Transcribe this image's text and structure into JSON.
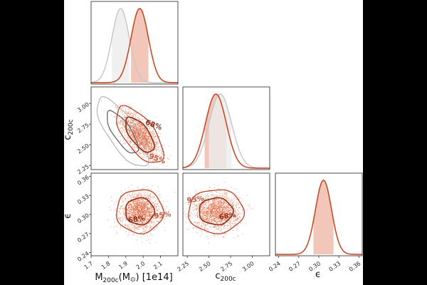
{
  "chart_data": {
    "type": "corner",
    "colors": {
      "posterior": "#c8401c",
      "posterior_fill": "#f2c6b8",
      "reference": "#c8c8c8",
      "scatter": "#e0643c",
      "contour_dark": "#8a2f17"
    },
    "parameters": [
      {
        "name": "M200c",
        "label_main": "M",
        "label_sub": "200c",
        "label_suffix": "(M",
        "label_sun": "⊙",
        "label_end": ") [1e14]",
        "range": [
          1.7,
          2.2
        ],
        "ticks": [
          "1.7",
          "1.8",
          "1.9",
          "2.0",
          "2.1"
        ],
        "tick_values": [
          1.7,
          1.8,
          1.9,
          2.0,
          2.1
        ]
      },
      {
        "name": "c200c",
        "label_main": "c",
        "label_sub": "200c",
        "range": [
          2.2,
          3.2
        ],
        "ticks": [
          "2.25",
          "2.50",
          "2.75",
          "3.00"
        ],
        "tick_values": [
          2.25,
          2.5,
          2.75,
          3.0
        ]
      },
      {
        "name": "epsilon",
        "label_main": "ϵ",
        "range": [
          0.235,
          0.365
        ],
        "ticks": [
          "0.24",
          "0.27",
          "0.30",
          "0.33",
          "0.36"
        ],
        "tick_values": [
          0.24,
          0.27,
          0.3,
          0.33,
          0.36
        ]
      }
    ],
    "marginals": [
      {
        "param": "M200c",
        "posterior_mean": 1.98,
        "posterior_sigma": 0.05,
        "reference_mean": 1.87,
        "reference_sigma": 0.05,
        "band": [
          1.93,
          2.03
        ]
      },
      {
        "param": "c200c",
        "posterior_mean": 2.58,
        "posterior_sigma": 0.12,
        "reference_mean": 2.63,
        "reference_sigma": 0.13,
        "band": [
          2.45,
          2.7
        ]
      },
      {
        "param": "epsilon",
        "posterior_mean": 0.307,
        "posterior_sigma": 0.012,
        "band": [
          0.292,
          0.322
        ]
      }
    ],
    "joint": [
      {
        "x": "M200c",
        "y": "c200c",
        "mean": [
          1.98,
          2.62
        ],
        "sd": [
          0.055,
          0.14
        ],
        "rho": -0.65,
        "ref_mean": [
          1.88,
          2.65
        ],
        "ref_sd": [
          0.06,
          0.17
        ],
        "ref_rho": -0.75,
        "labels": [
          "68%",
          "95%"
        ]
      },
      {
        "x": "M200c",
        "y": "epsilon",
        "mean": [
          1.98,
          0.305
        ],
        "sd": [
          0.055,
          0.014
        ],
        "rho": 0.0,
        "labels": [
          "68%",
          "95%"
        ]
      },
      {
        "x": "c200c",
        "y": "epsilon",
        "mean": [
          2.58,
          0.305
        ],
        "sd": [
          0.13,
          0.014
        ],
        "rho": 0.0,
        "labels": [
          "95%",
          "68%"
        ]
      }
    ]
  }
}
